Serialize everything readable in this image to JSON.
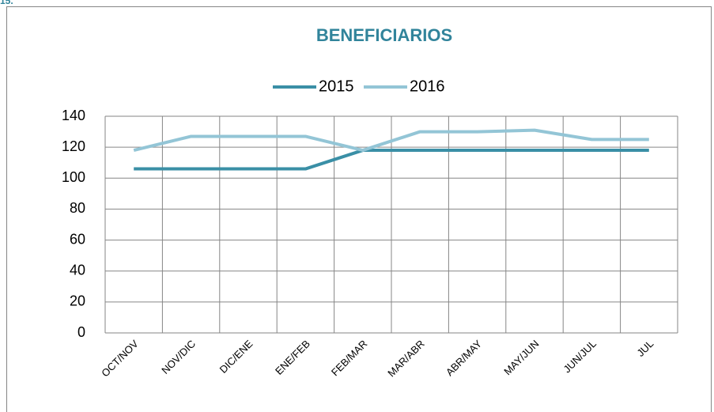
{
  "corner_label": "15.",
  "chart_data": {
    "type": "line",
    "title": "BENEFICIARIOS",
    "categories": [
      "OCT/NOV",
      "NOV/DIC",
      "DIC/ENE",
      "ENE/FEB",
      "FEB/MAR",
      "MAR/ABR",
      "ABR/MAY",
      "MAY/JUN",
      "JUN/JUL",
      "JUL"
    ],
    "series": [
      {
        "name": "2015",
        "color": "#3a8fa6",
        "values": [
          106,
          106,
          106,
          106,
          118,
          118,
          118,
          118,
          118,
          118
        ]
      },
      {
        "name": "2016",
        "color": "#93c5d6",
        "values": [
          118,
          127,
          127,
          127,
          118,
          130,
          130,
          131,
          125,
          125
        ]
      }
    ],
    "ylim": [
      0,
      140
    ],
    "yticks": [
      0,
      20,
      40,
      60,
      80,
      100,
      120,
      140
    ],
    "grid": true,
    "legend": "top"
  }
}
